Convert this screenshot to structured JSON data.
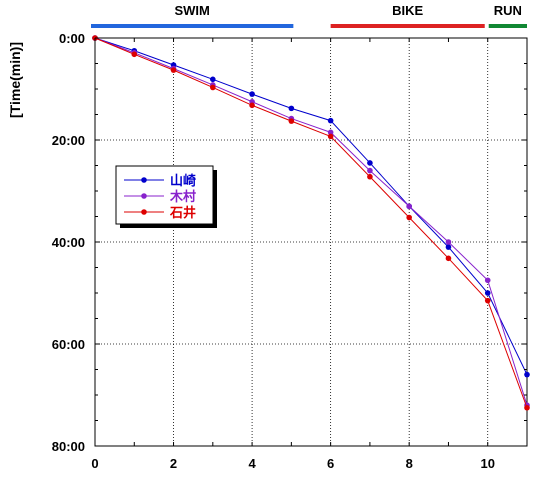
{
  "chart_data": {
    "type": "line",
    "ylabel": "[Time(min)]",
    "xlabel": "",
    "xlim": [
      0,
      11
    ],
    "ylim": [
      0,
      80
    ],
    "y_inverted": true,
    "x_ticks": [
      {
        "value": 0,
        "label": "0"
      },
      {
        "value": 2,
        "label": "2"
      },
      {
        "value": 4,
        "label": "4"
      },
      {
        "value": 6,
        "label": "6"
      },
      {
        "value": 8,
        "label": "8"
      },
      {
        "value": 10,
        "label": "10"
      }
    ],
    "y_ticks": [
      {
        "value": 0,
        "label": "0:00"
      },
      {
        "value": 20,
        "label": "20:00"
      },
      {
        "value": 40,
        "label": "40:00"
      },
      {
        "value": 60,
        "label": "60:00"
      },
      {
        "value": 80,
        "label": "80:00"
      }
    ],
    "grid": true,
    "legend_position": "left-middle",
    "segments": [
      {
        "label": "SWIM",
        "x_start": 0,
        "x_end": 5,
        "color": "#2266dd"
      },
      {
        "label": "BIKE",
        "x_start": 6,
        "x_end": 10,
        "color": "#dd2222"
      },
      {
        "label": "RUN",
        "x_start": 10,
        "x_end": 11,
        "color": "#118833"
      }
    ],
    "x": [
      0,
      1,
      2,
      3,
      4,
      5,
      6,
      7,
      8,
      9,
      10,
      11
    ],
    "series": [
      {
        "name": "山崎",
        "color": "#0000cc",
        "values": [
          0,
          2.5,
          5.3,
          8.1,
          11.0,
          13.8,
          16.2,
          24.5,
          33.0,
          41.0,
          50.0,
          66.0
        ]
      },
      {
        "name": "木村",
        "color": "#8822cc",
        "values": [
          0,
          2.9,
          6.0,
          9.2,
          12.5,
          15.8,
          18.5,
          26.0,
          33.0,
          40.0,
          47.5,
          72.0
        ]
      },
      {
        "name": "石井",
        "color": "#dd0000",
        "values": [
          0,
          3.2,
          6.3,
          9.7,
          13.2,
          16.3,
          19.3,
          27.2,
          35.2,
          43.2,
          51.5,
          72.5
        ]
      }
    ]
  }
}
